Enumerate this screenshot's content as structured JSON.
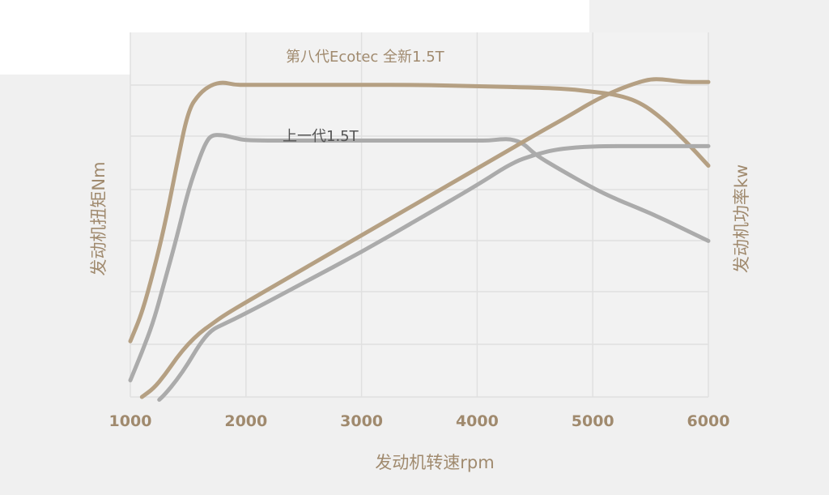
{
  "colors": {
    "background": "#f0f0f0",
    "plot_background": "#f2f2f2",
    "grid": "#e0e0e0",
    "gold": "#b5a083",
    "gray": "#ababab",
    "label_gold": "#a08a6e",
    "label_dark": "#555555"
  },
  "chart_data": {
    "type": "line",
    "x_range": [
      1000,
      6000
    ],
    "x_ticks": [
      "1000",
      "2000",
      "3000",
      "4000",
      "5000",
      "6000"
    ],
    "x_tick_values": [
      1000,
      2000,
      3000,
      4000,
      5000,
      6000
    ],
    "xlabel": "发动机转速rpm",
    "ylabel_left": "发动机扭矩Nm",
    "ylabel_right": "发动机功率kw",
    "y_tick_labels_shown": false,
    "grid": true,
    "series": [
      {
        "name": "第八代Ecotec 全新1.5T",
        "measure": "torque",
        "axis": "left",
        "color": "#b5a083",
        "x": [
          1000,
          1100,
          1200,
          1300,
          1400,
          1500,
          1600,
          1700,
          1800,
          1900,
          2000,
          2500,
          3000,
          3500,
          4000,
          4500,
          4800,
          5000,
          5200,
          5400,
          5600,
          5800,
          6000
        ],
        "y": [
          0.2,
          0.3,
          0.45,
          0.62,
          0.83,
          1.03,
          1.09,
          1.12,
          1.13,
          1.12,
          1.12,
          1.12,
          1.12,
          1.12,
          1.115,
          1.11,
          1.105,
          1.095,
          1.085,
          1.06,
          1.0,
          0.92,
          0.83
        ]
      },
      {
        "name": "上一代1.5T",
        "measure": "torque",
        "axis": "left",
        "color": "#ababab",
        "x": [
          1000,
          1100,
          1200,
          1300,
          1400,
          1500,
          1600,
          1650,
          1700,
          1800,
          1900,
          2000,
          2500,
          3000,
          3500,
          4000,
          4100,
          4200,
          4300,
          4400,
          4500,
          4700,
          5000,
          5200,
          5500,
          5800,
          6000
        ],
        "y": [
          0.06,
          0.16,
          0.27,
          0.42,
          0.57,
          0.74,
          0.86,
          0.91,
          0.94,
          0.94,
          0.93,
          0.92,
          0.92,
          0.92,
          0.92,
          0.92,
          0.92,
          0.925,
          0.925,
          0.91,
          0.87,
          0.82,
          0.75,
          0.71,
          0.66,
          0.6,
          0.56
        ]
      },
      {
        "name": "第八代Ecotec 全新1.5T",
        "measure": "power",
        "axis": "right",
        "color": "#b5a083",
        "x": [
          1100,
          1200,
          1300,
          1400,
          1500,
          1600,
          1700,
          1800,
          2000,
          2500,
          3000,
          3500,
          4000,
          4500,
          4800,
          5000,
          5200,
          5400,
          5500,
          5600,
          5700,
          5800,
          6000
        ],
        "y": [
          0.0,
          0.03,
          0.08,
          0.14,
          0.19,
          0.23,
          0.26,
          0.29,
          0.34,
          0.46,
          0.58,
          0.7,
          0.82,
          0.94,
          1.01,
          1.06,
          1.1,
          1.13,
          1.14,
          1.14,
          1.135,
          1.13,
          1.13
        ]
      },
      {
        "name": "上一代1.5T",
        "measure": "power",
        "axis": "right",
        "color": "#ababab",
        "x": [
          1250,
          1300,
          1400,
          1500,
          1600,
          1700,
          1800,
          2000,
          2500,
          3000,
          3500,
          4000,
          4300,
          4500,
          4700,
          5000,
          5500,
          6000
        ],
        "y": [
          -0.01,
          0.01,
          0.06,
          0.12,
          0.19,
          0.24,
          0.26,
          0.3,
          0.41,
          0.52,
          0.64,
          0.76,
          0.84,
          0.87,
          0.89,
          0.9,
          0.9,
          0.9
        ]
      }
    ],
    "annotations": [
      "第八代Ecotec 全新1.5T",
      "上一代1.5T"
    ]
  }
}
